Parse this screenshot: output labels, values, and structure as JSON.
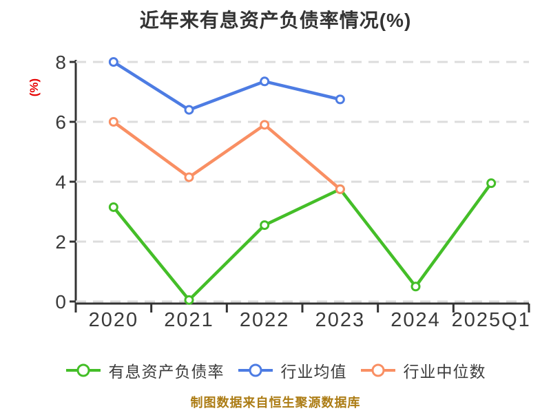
{
  "footer": {
    "text": "制图数据来自恒生聚源数据库"
  },
  "colors": {
    "background": "#FFFFFF",
    "title_text": "#333333",
    "axis_line": "#333333",
    "axis_tick_text": "#3A3A3A",
    "gridline": "#DCDCDC",
    "y_axis_label_text": "#E60000",
    "legend_text": "#3C3C3C",
    "footer_text": "#AC7C14",
    "marker_fill": "#FFFFFF"
  },
  "chart_data": {
    "type": "line",
    "title": "近年来有息资产负债率情况(%)",
    "ylabel": "(%)",
    "xlabel": "",
    "ylim": [
      0,
      8
    ],
    "yticks": [
      0,
      2,
      4,
      6,
      8
    ],
    "grid": "horizontal-dashed",
    "legend_position": "bottom",
    "categories": [
      "2020",
      "2021",
      "2022",
      "2023",
      "2024",
      "2025Q1"
    ],
    "series": [
      {
        "name": "有息资产负债率",
        "color": "#44BE28",
        "values": [
          3.15,
          0.05,
          2.55,
          3.75,
          0.5,
          3.95
        ]
      },
      {
        "name": "行业均值",
        "color": "#4D7CE3",
        "values": [
          8.0,
          6.4,
          7.35,
          6.75,
          null,
          null
        ]
      },
      {
        "name": "行业中位数",
        "color": "#F98F63",
        "values": [
          6.0,
          4.15,
          5.9,
          3.75,
          null,
          null
        ]
      }
    ]
  }
}
